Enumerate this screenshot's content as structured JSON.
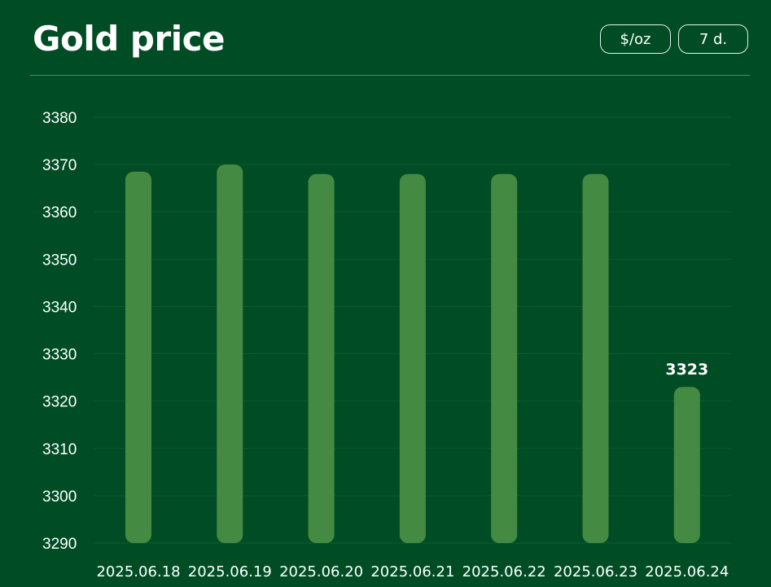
{
  "header": {
    "title": "Gold price",
    "unit_button": "$/oz",
    "range_button": "7 d."
  },
  "colors": {
    "background": "#004d25",
    "bar": "#458a42",
    "grid": "#0b5a2c"
  },
  "chart_data": {
    "type": "bar",
    "title": "Gold price",
    "categories": [
      "2025.06.18",
      "2025.06.19",
      "2025.06.20",
      "2025.06.21",
      "2025.06.22",
      "2025.06.23",
      "2025.06.24"
    ],
    "values": [
      3368.5,
      3370,
      3368,
      3368,
      3368,
      3368,
      3323
    ],
    "data_labels": [
      null,
      null,
      null,
      null,
      null,
      null,
      "3323"
    ],
    "ylim": [
      3290,
      3380
    ],
    "yticks": [
      "3290",
      "3300",
      "3310",
      "3320",
      "3330",
      "3340",
      "3350",
      "3360",
      "3370",
      "3380"
    ],
    "grid": true,
    "xlabel": "",
    "ylabel": ""
  }
}
